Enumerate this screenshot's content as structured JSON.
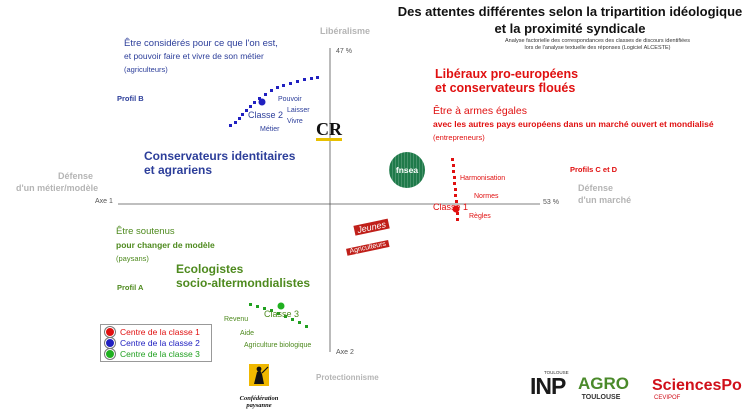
{
  "title_line1": "Des attentes différentes selon la tripartition idéologique",
  "title_line2": "et la proximité syndicale",
  "subtitle_line1": "Analyse factorielle des correspondances des classes de discours identifiées",
  "subtitle_line2": "lors de l'analyse textuelle des réponses (Logiciel ALCESTE)",
  "axes": {
    "top": "Libéralisme",
    "bottom": "Protectionnisme",
    "left_line1": "Défense",
    "left_line2": "d'un métier/modèle",
    "right_line1": "Défense",
    "right_line2": "d'un marché",
    "axis1_label": "Axe 1",
    "axis2_label": "Axe 2",
    "axis1_pct": "53 %",
    "axis2_pct": "47 %"
  },
  "groups": {
    "b_heading_line1": "Être considérés pour ce que l'on est,",
    "b_heading_line2": "et pouvoir faire et vivre de son métier",
    "b_sub": "(agriculteurs)",
    "b_profile": "Profil B",
    "b_words": [
      "Pouvoir",
      "Laisser",
      "Vivre",
      "Métier"
    ],
    "b_class": "Classe 2",
    "b_title_line1": "Conservateurs identitaires",
    "b_title_line2": "et agrariens",
    "cd_title_line1": "Libéraux pro-européens",
    "cd_title_line2": "et conservateurs floués",
    "cd_heading": "Être à armes égales",
    "cd_heading_line2": "avec les autres pays européens dans un marché ouvert et mondialisé",
    "cd_sub": "(entrepreneurs)",
    "cd_profile": "Profils C et D",
    "cd_words": [
      "Harmonisation",
      "Normes",
      "Règles"
    ],
    "cd_class": "Classe 1",
    "a_heading_line1": "Être soutenus",
    "a_heading_line2": "pour changer de modèle",
    "a_sub": "(paysans)",
    "a_profile": "Profil A",
    "a_title_line1": "Ecologistes",
    "a_title_line2": "socio-altermondialistes",
    "a_words": [
      "Revenu",
      "Aide",
      "Agriculture biologique"
    ],
    "a_class": "Classe 3"
  },
  "legend": [
    {
      "label": "Centre de la classe 1",
      "color": "#e01010"
    },
    {
      "label": "Centre de la classe 2",
      "color": "#2020c0"
    },
    {
      "label": "Centre de la classe 3",
      "color": "#20b020"
    }
  ],
  "logos": {
    "cr": "CR",
    "fnsea": "fnsea",
    "ja_line1": "Jeunes",
    "ja_line2": "Agriculteurs",
    "conf_line1": "Confédération",
    "conf_line2": "paysanne",
    "inp_small": "TOULOUSE",
    "inp": "INP",
    "agro": "AGRO",
    "agro_sub": "TOULOUSE",
    "sciencespo": "SciencesPo",
    "sciencespo_sub": "CEVIPOF"
  },
  "colors": {
    "blue": "#2c3e9a",
    "green": "#4e8a1e",
    "red": "#e01010",
    "grey": "#b5b5b5"
  }
}
